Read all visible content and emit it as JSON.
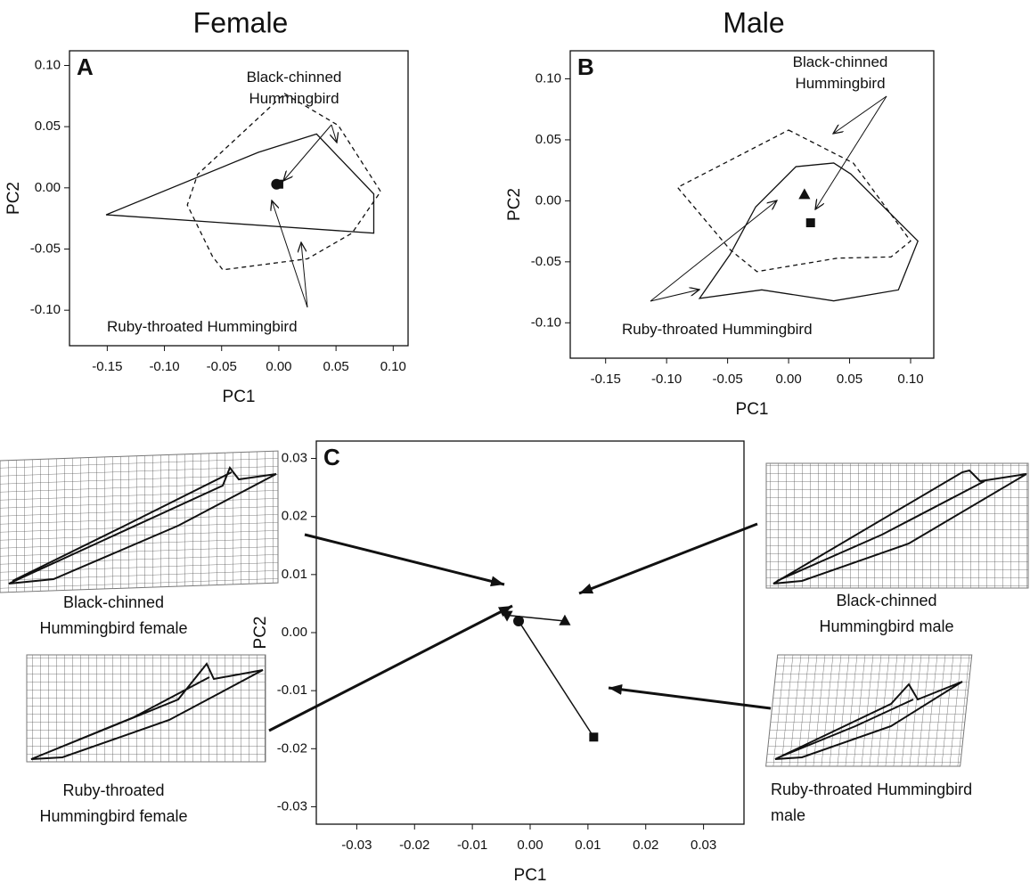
{
  "chart_data": [
    {
      "type": "polygon",
      "title": "Female",
      "panel": "A",
      "x_label": "PC1",
      "y_label": "PC2",
      "xlim": [
        -0.183,
        0.113
      ],
      "ylim": [
        -0.129,
        0.112
      ],
      "xticks": [
        {
          "value": -0.15,
          "label": "-0.15"
        },
        {
          "value": -0.1,
          "label": "-0.10"
        },
        {
          "value": -0.05,
          "label": "-0.05"
        },
        {
          "value": 0,
          "label": "0.00"
        },
        {
          "value": 0.05,
          "label": "0.05"
        },
        {
          "value": 0.1,
          "label": "0.10"
        }
      ],
      "yticks": [
        {
          "value": -0.1,
          "label": "-0.10"
        },
        {
          "value": -0.05,
          "label": "-0.05"
        },
        {
          "value": 0,
          "label": "0.00"
        },
        {
          "value": 0.05,
          "label": "0.05"
        },
        {
          "value": 0.1,
          "label": "0.10"
        }
      ],
      "series": [
        {
          "name": "Black-chinned Hummingbird",
          "style": "dashed",
          "color": "#111111",
          "x": [
            0.005,
            0.052,
            0.089,
            0.064,
            0.025,
            -0.049,
            -0.058,
            -0.08,
            -0.071
          ],
          "y": [
            0.077,
            0.051,
            -0.003,
            -0.037,
            -0.058,
            -0.067,
            -0.056,
            -0.014,
            0.011
          ]
        },
        {
          "name": "Ruby-throated Hummingbird",
          "style": "solid",
          "color": "#111111",
          "x": [
            -0.151,
            -0.018,
            0.033,
            0.083,
            0.083
          ],
          "y": [
            -0.022,
            0.029,
            0.044,
            -0.005,
            -0.037
          ]
        }
      ],
      "points": [
        {
          "marker": "square",
          "x": 0.0,
          "y": 0.003
        },
        {
          "marker": "circle",
          "x": -0.002,
          "y": 0.003
        }
      ]
    },
    {
      "type": "polygon",
      "title": "Male",
      "panel": "B",
      "x_label": "PC1",
      "y_label": "PC2",
      "xlim": [
        -0.179,
        0.119
      ],
      "ylim": [
        -0.129,
        0.123
      ],
      "xticks": [
        {
          "value": -0.15,
          "label": "-0.15"
        },
        {
          "value": -0.1,
          "label": "-0.10"
        },
        {
          "value": -0.05,
          "label": "-0.05"
        },
        {
          "value": 0,
          "label": "0.00"
        },
        {
          "value": 0.05,
          "label": "0.05"
        },
        {
          "value": 0.1,
          "label": "0.10"
        }
      ],
      "yticks": [
        {
          "value": -0.1,
          "label": "-0.10"
        },
        {
          "value": -0.05,
          "label": "-0.05"
        },
        {
          "value": 0,
          "label": "0.00"
        },
        {
          "value": 0.05,
          "label": "0.05"
        },
        {
          "value": 0.1,
          "label": "0.10"
        }
      ],
      "series": [
        {
          "name": "Black-chinned Hummingbird",
          "style": "dashed",
          "color": "#111111",
          "x": [
            0.0,
            0.053,
            0.1,
            0.084,
            0.04,
            -0.026,
            -0.048,
            -0.091
          ],
          "y": [
            0.058,
            0.031,
            -0.033,
            -0.046,
            -0.047,
            -0.058,
            -0.04,
            0.011
          ]
        },
        {
          "name": "Ruby-throated Hummingbird",
          "style": "solid",
          "color": "#111111",
          "x": [
            0.006,
            0.037,
            0.051,
            0.106,
            0.09,
            0.037,
            -0.022,
            -0.073,
            -0.048,
            -0.027
          ],
          "y": [
            0.028,
            0.031,
            0.022,
            -0.033,
            -0.073,
            -0.082,
            -0.073,
            -0.08,
            -0.044,
            -0.005
          ]
        }
      ],
      "points": [
        {
          "marker": "triangle-up",
          "x": 0.013,
          "y": 0.005
        },
        {
          "marker": "square",
          "x": 0.018,
          "y": -0.018
        }
      ]
    },
    {
      "type": "line",
      "panel": "C",
      "x_label": "PC1",
      "y_label": "PC2",
      "xlim": [
        -0.037,
        0.037
      ],
      "ylim": [
        -0.033,
        0.033
      ],
      "xticks": [
        {
          "value": -0.03,
          "label": "-0.03"
        },
        {
          "value": -0.02,
          "label": "-0.02"
        },
        {
          "value": -0.01,
          "label": "-0.01"
        },
        {
          "value": 0,
          "label": "0.00"
        },
        {
          "value": 0.01,
          "label": "0.01"
        },
        {
          "value": 0.02,
          "label": "0.02"
        },
        {
          "value": 0.03,
          "label": "0.03"
        }
      ],
      "yticks": [
        {
          "value": -0.03,
          "label": "-0.03"
        },
        {
          "value": -0.02,
          "label": "-0.02"
        },
        {
          "value": -0.01,
          "label": "-0.01"
        },
        {
          "value": 0,
          "label": "0.00"
        },
        {
          "value": 0.01,
          "label": "0.01"
        },
        {
          "value": 0.02,
          "label": "0.02"
        },
        {
          "value": 0.03,
          "label": "0.03"
        }
      ],
      "series": [
        {
          "color": "#111111",
          "markers": [
            "triangle-down",
            "triangle-up"
          ],
          "x": [
            -0.004,
            0.006
          ],
          "y": [
            0.003,
            0.002
          ]
        },
        {
          "color": "#111111",
          "markers": [
            "circle",
            "square"
          ],
          "x": [
            -0.002,
            0.011
          ],
          "y": [
            0.002,
            -0.018
          ]
        }
      ],
      "annotations": [
        "Black-chinned Hummingbird female",
        "Ruby-throated Hummingbird female",
        "Black-chinned Hummingbird male",
        "Ruby-throated Hummingbird male"
      ]
    }
  ]
}
